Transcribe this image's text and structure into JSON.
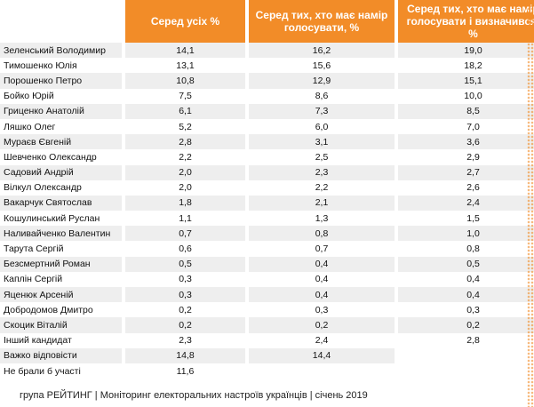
{
  "table": {
    "header": [
      "Серед усіх %",
      "Серед тих, хто має намір голосувати, %",
      "Серед тих, хто має намір голосувати і визначився, %"
    ],
    "rows": [
      [
        "Зеленський Володимир",
        "14,1",
        "16,2",
        "19,0"
      ],
      [
        "Тимошенко Юлія",
        "13,1",
        "15,6",
        "18,2"
      ],
      [
        "Порошенко Петро",
        "10,8",
        "12,9",
        "15,1"
      ],
      [
        "Бойко Юрій",
        "7,5",
        "8,6",
        "10,0"
      ],
      [
        "Гриценко Анатолій",
        "6,1",
        "7,3",
        "8,5"
      ],
      [
        "Ляшко Олег",
        "5,2",
        "6,0",
        "7,0"
      ],
      [
        "Мураєв Євгеній",
        "2,8",
        "3,1",
        "3,6"
      ],
      [
        "Шевченко Олександр",
        "2,2",
        "2,5",
        "2,9"
      ],
      [
        "Садовий Андрій",
        "2,0",
        "2,3",
        "2,7"
      ],
      [
        "Вілкул Олександр",
        "2,0",
        "2,2",
        "2,6"
      ],
      [
        "Вакарчук Святослав",
        "1,8",
        "2,1",
        "2,4"
      ],
      [
        "Кошулинський Руслан",
        "1,1",
        "1,3",
        "1,5"
      ],
      [
        "Наливайченко Валентин",
        "0,7",
        "0,8",
        "1,0"
      ],
      [
        "Тарута Сергій",
        "0,6",
        "0,7",
        "0,8"
      ],
      [
        "Безсмертний Роман",
        "0,5",
        "0,4",
        "0,5"
      ],
      [
        "Каплін Сергій",
        "0,3",
        "0,4",
        "0,4"
      ],
      [
        "Яценюк Арсеній",
        "0,3",
        "0,4",
        "0,4"
      ],
      [
        "Добродомов Дмитро",
        "0,2",
        "0,3",
        "0,3"
      ],
      [
        "Скоцик Віталій",
        "0,2",
        "0,2",
        "0,2"
      ],
      [
        "Інший кандидат",
        "2,3",
        "2,4",
        "2,8"
      ],
      [
        "Важко відповісти",
        "14,8",
        "14,4",
        null
      ],
      [
        "Не брали б участі",
        "11,6",
        null,
        null
      ]
    ]
  },
  "footer": "група РЕЙТИНГ |  Моніторинг електоральних настроїв українців  |  січень  2019"
}
